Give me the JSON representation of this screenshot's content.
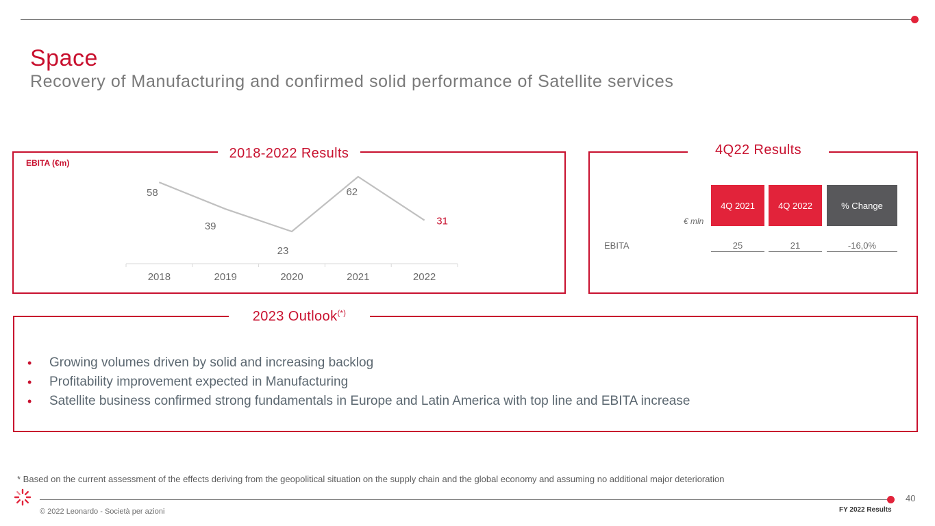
{
  "header": {
    "title": "Space",
    "subtitle": "Recovery of Manufacturing and confirmed solid performance of Satellite services"
  },
  "results_panel": {
    "title": "2018-2022 Results",
    "metric_label": "EBITA (€m)"
  },
  "chart_data": {
    "type": "line",
    "categories": [
      "2018",
      "2019",
      "2020",
      "2021",
      "2022"
    ],
    "series": [
      {
        "values": [
          58,
          39,
          23,
          62,
          31
        ]
      }
    ],
    "data_labels": [
      "58",
      "39",
      "23",
      "62",
      "31"
    ],
    "highlight_last": true,
    "line_color": "#c0c0c0",
    "highlight_color": "#c8102e",
    "ylim": [
      0,
      70
    ],
    "grid": false
  },
  "quarter_panel": {
    "title": "4Q22 Results",
    "unit_label": "€ mln",
    "columns": [
      "4Q 2021",
      "4Q 2022",
      "% Change"
    ],
    "rows": [
      {
        "label": "EBITA",
        "values": [
          "25",
          "21",
          "-16,0%"
        ]
      }
    ],
    "colors": {
      "red": "#e2233a",
      "grey": "#58585b"
    }
  },
  "outlook_panel": {
    "title": "2023 Outlook",
    "title_superscript": "(*)",
    "bullets": [
      "Growing volumes driven by solid and increasing backlog",
      "Profitability improvement expected in Manufacturing",
      "Satellite business confirmed strong fundamentals in Europe and Latin America with top line and EBITA increase"
    ]
  },
  "footer": {
    "footnote": "* Based on the current assessment of the effects deriving from the geopolitical situation on the supply chain and the global economy and assuming no additional major deterioration",
    "page_number": "40",
    "copyright": "© 2022 Leonardo - Società per azioni",
    "document_label": "FY 2022 Results"
  },
  "logo": {
    "icon": "leonardo-logo-icon"
  }
}
